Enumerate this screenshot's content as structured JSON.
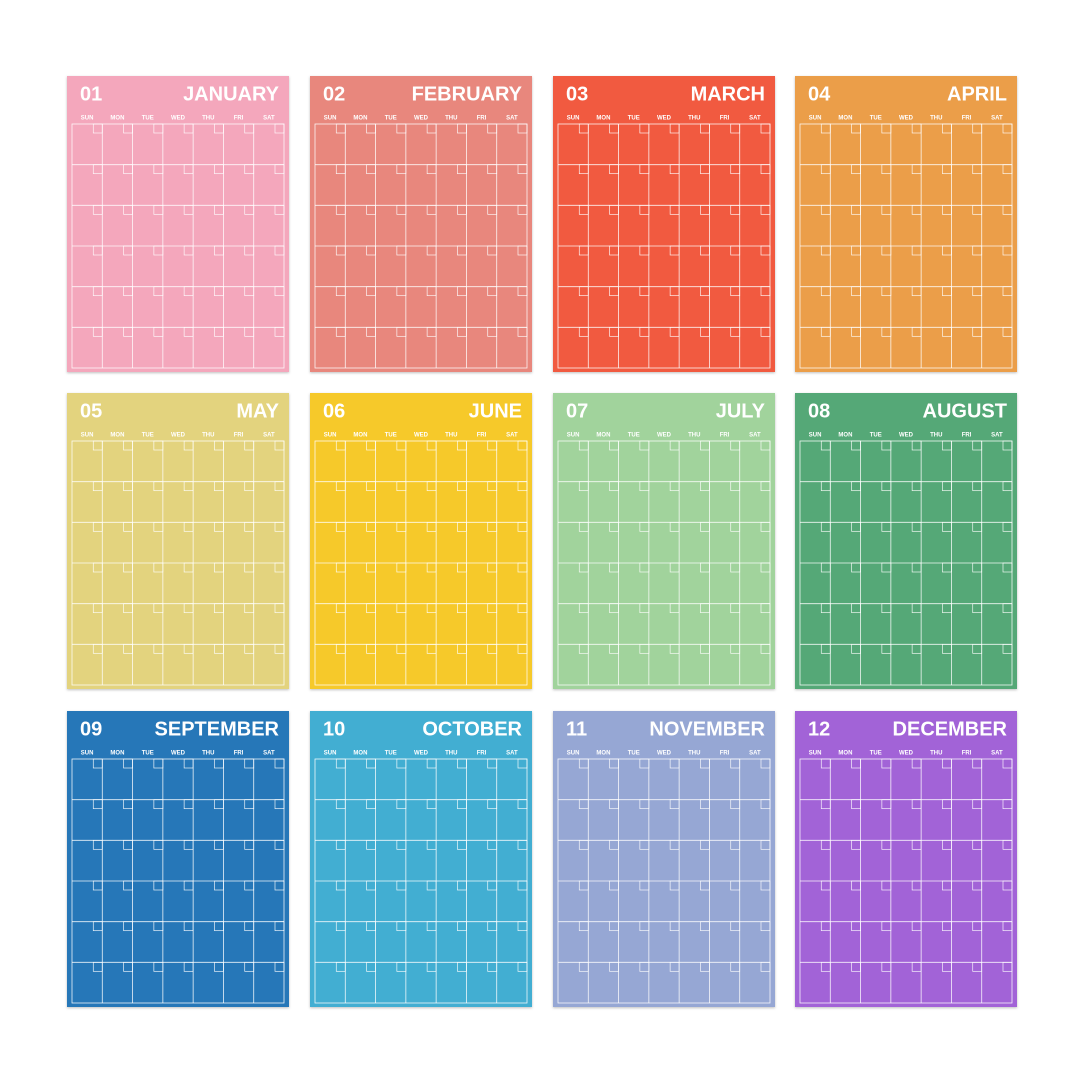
{
  "weekdays": [
    "SUN",
    "MON",
    "TUE",
    "WED",
    "THU",
    "FRI",
    "SAT"
  ],
  "months": [
    {
      "number": "01",
      "name": "JANUARY",
      "color": "#f4a7bc"
    },
    {
      "number": "02",
      "name": "FEBRUARY",
      "color": "#e8877d"
    },
    {
      "number": "03",
      "name": "MARCH",
      "color": "#f15a40"
    },
    {
      "number": "04",
      "name": "APRIL",
      "color": "#eb9e4a"
    },
    {
      "number": "05",
      "name": "MAY",
      "color": "#e3d37e"
    },
    {
      "number": "06",
      "name": "JUNE",
      "color": "#f6c92c"
    },
    {
      "number": "07",
      "name": "JULY",
      "color": "#a1d39c"
    },
    {
      "number": "08",
      "name": "AUGUST",
      "color": "#55a877"
    },
    {
      "number": "09",
      "name": "SEPTEMBER",
      "color": "#2577b8"
    },
    {
      "number": "10",
      "name": "OCTOBER",
      "color": "#43aed2"
    },
    {
      "number": "11",
      "name": "NOVEMBER",
      "color": "#96a7d4"
    },
    {
      "number": "12",
      "name": "DECEMBER",
      "color": "#a264d7"
    }
  ]
}
